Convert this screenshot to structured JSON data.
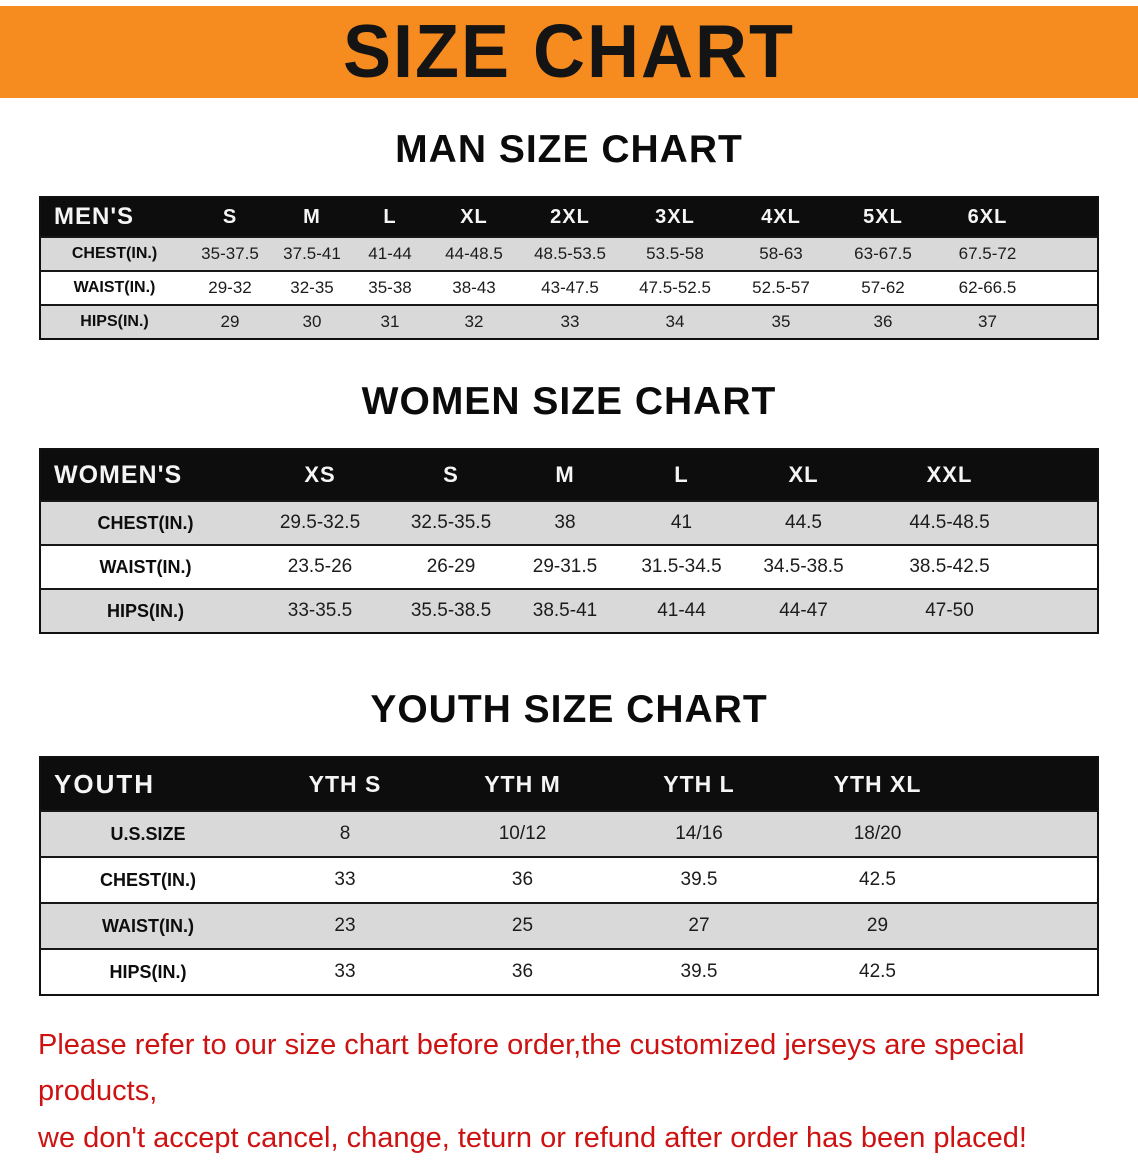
{
  "banner": {
    "title": "SIZE CHART"
  },
  "colors": {
    "banner_bg": "#F68B1F",
    "header_bg": "#0D0D0D",
    "stripe": "#D9D9D9",
    "note_color": "#CE1212"
  },
  "sections": [
    {
      "heading": "MAN SIZE CHART",
      "table": {
        "header": [
          "MEN'S",
          "S",
          "M",
          "L",
          "XL",
          "2XL",
          "3XL",
          "4XL",
          "5XL",
          "6XL"
        ],
        "rows": [
          {
            "label": "CHEST(IN.)",
            "values": [
              "35-37.5",
              "37.5-41",
              "41-44",
              "44-48.5",
              "48.5-53.5",
              "53.5-58",
              "58-63",
              "63-67.5",
              "67.5-72"
            ]
          },
          {
            "label": "WAIST(IN.)",
            "values": [
              "29-32",
              "32-35",
              "35-38",
              "38-43",
              "43-47.5",
              "47.5-52.5",
              "52.5-57",
              "57-62",
              "62-66.5"
            ]
          },
          {
            "label": "HIPS(IN.)",
            "values": [
              "29",
              "30",
              "31",
              "32",
              "33",
              "34",
              "35",
              "36",
              "37"
            ]
          }
        ]
      }
    },
    {
      "heading": "WOMEN SIZE CHART",
      "table": {
        "header": [
          "WOMEN'S",
          "XS",
          "S",
          "M",
          "L",
          "XL",
          "XXL"
        ],
        "rows": [
          {
            "label": "CHEST(IN.)",
            "values": [
              "29.5-32.5",
              "32.5-35.5",
              "38",
              "41",
              "44.5",
              "44.5-48.5"
            ]
          },
          {
            "label": "WAIST(IN.)",
            "values": [
              "23.5-26",
              "26-29",
              "29-31.5",
              "31.5-34.5",
              "34.5-38.5",
              "38.5-42.5"
            ]
          },
          {
            "label": "HIPS(IN.)",
            "values": [
              "33-35.5",
              "35.5-38.5",
              "38.5-41",
              "41-44",
              "44-47",
              "47-50"
            ]
          }
        ]
      }
    },
    {
      "heading": "YOUTH SIZE CHART",
      "table": {
        "header": [
          "YOUTH",
          "YTH S",
          "YTH M",
          "YTH L",
          "YTH XL"
        ],
        "rows": [
          {
            "label": "U.S.SIZE",
            "values": [
              "8",
              "10/12",
              "14/16",
              "18/20"
            ]
          },
          {
            "label": "CHEST(IN.)",
            "values": [
              "33",
              "36",
              "39.5",
              "42.5"
            ]
          },
          {
            "label": "WAIST(IN.)",
            "values": [
              "23",
              "25",
              "27",
              "29"
            ]
          },
          {
            "label": "HIPS(IN.)",
            "values": [
              "33",
              "36",
              "39.5",
              "42.5"
            ]
          }
        ]
      }
    }
  ],
  "footer": {
    "line1": "Please refer to our size chart before order,the customized jerseys are special products,",
    "line2": "we don't accept cancel, change, teturn or refund after order has been placed!"
  }
}
